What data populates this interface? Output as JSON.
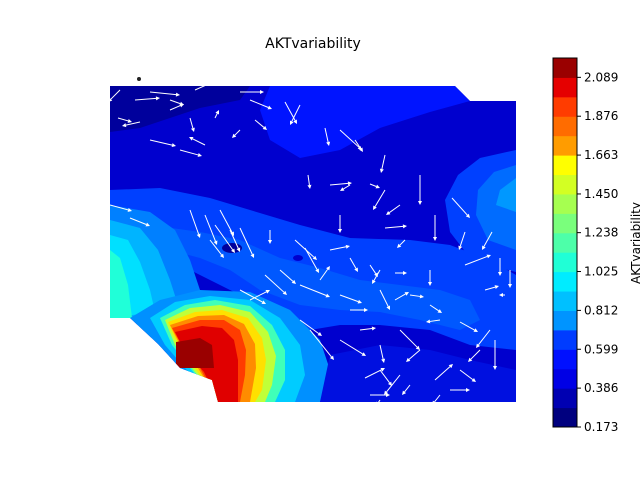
{
  "chart_data": {
    "type": "heatmap",
    "title": "AKTvariability",
    "xlabel": "",
    "ylabel": "",
    "colorbar": {
      "label": "AKTvariability",
      "range": [
        0.173,
        2.195
      ],
      "ticks": [
        0.173,
        0.386,
        0.599,
        0.812,
        1.025,
        1.238,
        1.45,
        1.663,
        1.876,
        2.089
      ],
      "tick_labels": [
        "0.173",
        "0.386",
        "0.599",
        "0.812",
        "1.025",
        "1.238",
        "1.450",
        "1.663",
        "1.876",
        "2.089"
      ],
      "levels": 19,
      "colormap": "jet"
    },
    "overlay": "vector field arrows (white)",
    "axes_visible": false
  },
  "colors": {
    "arrow": "#ffffff",
    "background": "#ffffff",
    "map_bg": "#0000cd"
  }
}
